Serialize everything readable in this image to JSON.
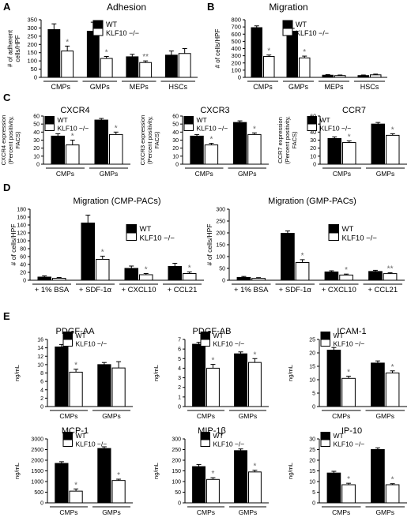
{
  "legend": {
    "wt": "WT",
    "ko": "KLF10 −/−"
  },
  "colors": {
    "wt": "#000000",
    "ko": "#ffffff",
    "axis": "#000000",
    "star": "#666666"
  },
  "chart_data": [
    {
      "panel": "A",
      "title": "Adhesion",
      "type": "bar",
      "ylabel": [
        "# of adherent",
        "cells/HPF"
      ],
      "categories": [
        "CMPs",
        "GMPs",
        "MEPs",
        "HSCs"
      ],
      "yticks": [
        0,
        50,
        100,
        150,
        200,
        250,
        300,
        350
      ],
      "ylim": [
        0,
        350
      ],
      "series": [
        {
          "name": "WT",
          "values": [
            290,
            280,
            125,
            135
          ],
          "errors": [
            35,
            55,
            15,
            25
          ]
        },
        {
          "name": "KLF10 −/−",
          "values": [
            160,
            115,
            90,
            145
          ],
          "errors": [
            30,
            12,
            10,
            30
          ]
        }
      ],
      "sig": [
        "*",
        "*",
        "**",
        ""
      ]
    },
    {
      "panel": "B",
      "title": "Migration",
      "type": "bar",
      "ylabel": [
        "# of cells/HPF"
      ],
      "categories": [
        "CMPs",
        "GMPs",
        "MEPs",
        "HSCs"
      ],
      "yticks": [
        0,
        100,
        200,
        300,
        400,
        500,
        600,
        700,
        800
      ],
      "ylim": [
        0,
        800
      ],
      "series": [
        {
          "name": "WT",
          "values": [
            690,
            640,
            30,
            25
          ],
          "errors": [
            25,
            40,
            8,
            8
          ]
        },
        {
          "name": "KLF10 −/−",
          "values": [
            290,
            270,
            25,
            35
          ],
          "errors": [
            20,
            25,
            8,
            10
          ]
        }
      ],
      "sig": [
        "*",
        "*",
        "",
        ""
      ]
    },
    {
      "panel": "C",
      "title": "CXCR4",
      "type": "bar",
      "ylabel": [
        "CXCR4 expression",
        "(Percent positivity,",
        "FACS)"
      ],
      "categories": [
        "CMPs",
        "GMPs"
      ],
      "yticks": [
        0,
        10,
        20,
        30,
        40,
        50,
        60
      ],
      "ylim": [
        0,
        60
      ],
      "series": [
        {
          "name": "WT",
          "values": [
            35,
            55
          ],
          "errors": [
            3,
            2
          ]
        },
        {
          "name": "KLF10 −/−",
          "values": [
            24,
            37
          ],
          "errors": [
            6,
            3
          ]
        }
      ],
      "sig": [
        "*",
        "*"
      ]
    },
    {
      "panel": "C2",
      "title": "CXCR3",
      "type": "bar",
      "ylabel": [
        "CXCR3 expression",
        "(Percent positivity,",
        "FACS)"
      ],
      "categories": [
        "CMPs",
        "GMPs"
      ],
      "yticks": [
        0,
        10,
        20,
        30,
        40,
        50,
        60
      ],
      "ylim": [
        0,
        60
      ],
      "series": [
        {
          "name": "WT",
          "values": [
            35,
            52
          ],
          "errors": [
            2,
            2
          ]
        },
        {
          "name": "KLF10 −/−",
          "values": [
            24,
            37
          ],
          "errors": [
            2,
            2
          ]
        }
      ],
      "sig": [
        "*",
        "*"
      ]
    },
    {
      "panel": "C3",
      "title": "CCR7",
      "type": "bar",
      "ylabel": [
        "CCR7 expression",
        "(Percent positivity,",
        "FACS)"
      ],
      "categories": [
        "CMPs",
        "GMPs"
      ],
      "yticks": [
        0,
        10,
        20,
        30,
        40,
        50,
        60
      ],
      "ylim": [
        0,
        60
      ],
      "series": [
        {
          "name": "WT",
          "values": [
            32,
            50
          ],
          "errors": [
            2,
            2
          ]
        },
        {
          "name": "KLF10 −/−",
          "values": [
            27,
            36
          ],
          "errors": [
            2,
            2
          ]
        }
      ],
      "sig": [
        "*",
        "*"
      ]
    },
    {
      "panel": "D",
      "title": "Migration (CMP-PACs)",
      "type": "bar",
      "ylabel": [
        "# of cells/HPF"
      ],
      "categories": [
        "+ 1% BSA",
        "+ SDF-1α",
        "+ CXCL10",
        "+ CCL21"
      ],
      "yticks": [
        0,
        20,
        40,
        60,
        80,
        100,
        120,
        140,
        160,
        180
      ],
      "ylim": [
        0,
        180
      ],
      "series": [
        {
          "name": "WT",
          "values": [
            8,
            145,
            30,
            35
          ],
          "errors": [
            3,
            20,
            6,
            8
          ]
        },
        {
          "name": "KLF10 −/−",
          "values": [
            5,
            53,
            14,
            17
          ],
          "errors": [
            2,
            8,
            3,
            4
          ]
        }
      ],
      "sig": [
        "",
        "*",
        "*",
        "*"
      ]
    },
    {
      "panel": "D2",
      "title": "Migration (GMP-PACs)",
      "type": "bar",
      "ylabel": [
        "# of cells/HPF"
      ],
      "categories": [
        "+ 1% BSA",
        "+ SDF-1α",
        "+ CXCL10",
        "+ CCL21"
      ],
      "yticks": [
        0,
        50,
        100,
        150,
        200,
        250,
        300
      ],
      "ylim": [
        0,
        300
      ],
      "series": [
        {
          "name": "WT",
          "values": [
            12,
            198,
            35,
            37
          ],
          "errors": [
            4,
            10,
            5,
            5
          ]
        },
        {
          "name": "KLF10 −/−",
          "values": [
            8,
            75,
            22,
            28
          ],
          "errors": [
            3,
            12,
            4,
            4
          ]
        }
      ],
      "sig": [
        "",
        "*",
        "*",
        "**"
      ]
    },
    {
      "panel": "E",
      "title": "PDGF-AA",
      "type": "bar",
      "ylabel": [
        "ng/mL"
      ],
      "categories": [
        "CMPs",
        "GMPs"
      ],
      "yticks": [
        0,
        2,
        4,
        6,
        8,
        10,
        12,
        14,
        16
      ],
      "ylim": [
        0,
        16
      ],
      "series": [
        {
          "name": "WT",
          "values": [
            14.2,
            10
          ],
          "errors": [
            0.6,
            0.5
          ]
        },
        {
          "name": "KLF10 −/−",
          "values": [
            8.2,
            9.2
          ],
          "errors": [
            0.7,
            1.5
          ]
        }
      ],
      "sig": [
        "*",
        ""
      ]
    },
    {
      "panel": "E2",
      "title": "PDGF-AB",
      "type": "bar",
      "ylabel": [
        "ng/mL"
      ],
      "categories": [
        "CMPs",
        "GMPs"
      ],
      "yticks": [
        0,
        1,
        2,
        3,
        4,
        5,
        6,
        7
      ],
      "ylim": [
        0,
        7
      ],
      "series": [
        {
          "name": "WT",
          "values": [
            6.5,
            5.5
          ],
          "errors": [
            0.2,
            0.2
          ]
        },
        {
          "name": "KLF10 −/−",
          "values": [
            4,
            4.6
          ],
          "errors": [
            0.4,
            0.4
          ]
        }
      ],
      "sig": [
        "*",
        "*"
      ]
    },
    {
      "panel": "E3",
      "title": "ICAM-1",
      "type": "bar",
      "ylabel": [
        "ng/mL"
      ],
      "categories": [
        "CMPs",
        "GMPs"
      ],
      "yticks": [
        0,
        5,
        10,
        15,
        20,
        25
      ],
      "ylim": [
        0,
        25
      ],
      "series": [
        {
          "name": "WT",
          "values": [
            21,
            16.2
          ],
          "errors": [
            1,
            0.8
          ]
        },
        {
          "name": "KLF10 −/−",
          "values": [
            10.5,
            12.5
          ],
          "errors": [
            0.8,
            0.8
          ]
        }
      ],
      "sig": [
        "*",
        "*"
      ]
    },
    {
      "panel": "E4",
      "title": "MCP-1",
      "type": "bar",
      "ylabel": [
        "ng/mL"
      ],
      "categories": [
        "CMPs",
        "GMPs"
      ],
      "yticks": [
        0,
        500,
        1000,
        1500,
        2000,
        2500,
        3000
      ],
      "ylim": [
        0,
        3000
      ],
      "series": [
        {
          "name": "WT",
          "values": [
            1850,
            2550
          ],
          "errors": [
            80,
            80
          ]
        },
        {
          "name": "KLF10 −/−",
          "values": [
            550,
            1050
          ],
          "errors": [
            100,
            60
          ]
        }
      ],
      "sig": [
        "*",
        "*"
      ]
    },
    {
      "panel": "E5",
      "title": "MIP-1β",
      "type": "bar",
      "ylabel": [
        "ng/mL"
      ],
      "categories": [
        "CMPs",
        "GMPs"
      ],
      "yticks": [
        0,
        50,
        100,
        150,
        200,
        250,
        300
      ],
      "ylim": [
        0,
        300
      ],
      "series": [
        {
          "name": "WT",
          "values": [
            170,
            245
          ],
          "errors": [
            10,
            8
          ]
        },
        {
          "name": "KLF10 −/−",
          "values": [
            110,
            145
          ],
          "errors": [
            8,
            8
          ]
        }
      ],
      "sig": [
        "*",
        "*"
      ]
    },
    {
      "panel": "E6",
      "title": "IP-10",
      "type": "bar",
      "ylabel": [
        "ng/mL"
      ],
      "categories": [
        "CMPs",
        "GMPs"
      ],
      "yticks": [
        0,
        5,
        10,
        15,
        20,
        25,
        30
      ],
      "ylim": [
        0,
        30
      ],
      "series": [
        {
          "name": "WT",
          "values": [
            14,
            25
          ],
          "errors": [
            0.8,
            0.8
          ]
        },
        {
          "name": "KLF10 −/−",
          "values": [
            8.5,
            8.5
          ],
          "errors": [
            0.7,
            0.5
          ]
        }
      ],
      "sig": [
        "*",
        "*"
      ]
    }
  ]
}
